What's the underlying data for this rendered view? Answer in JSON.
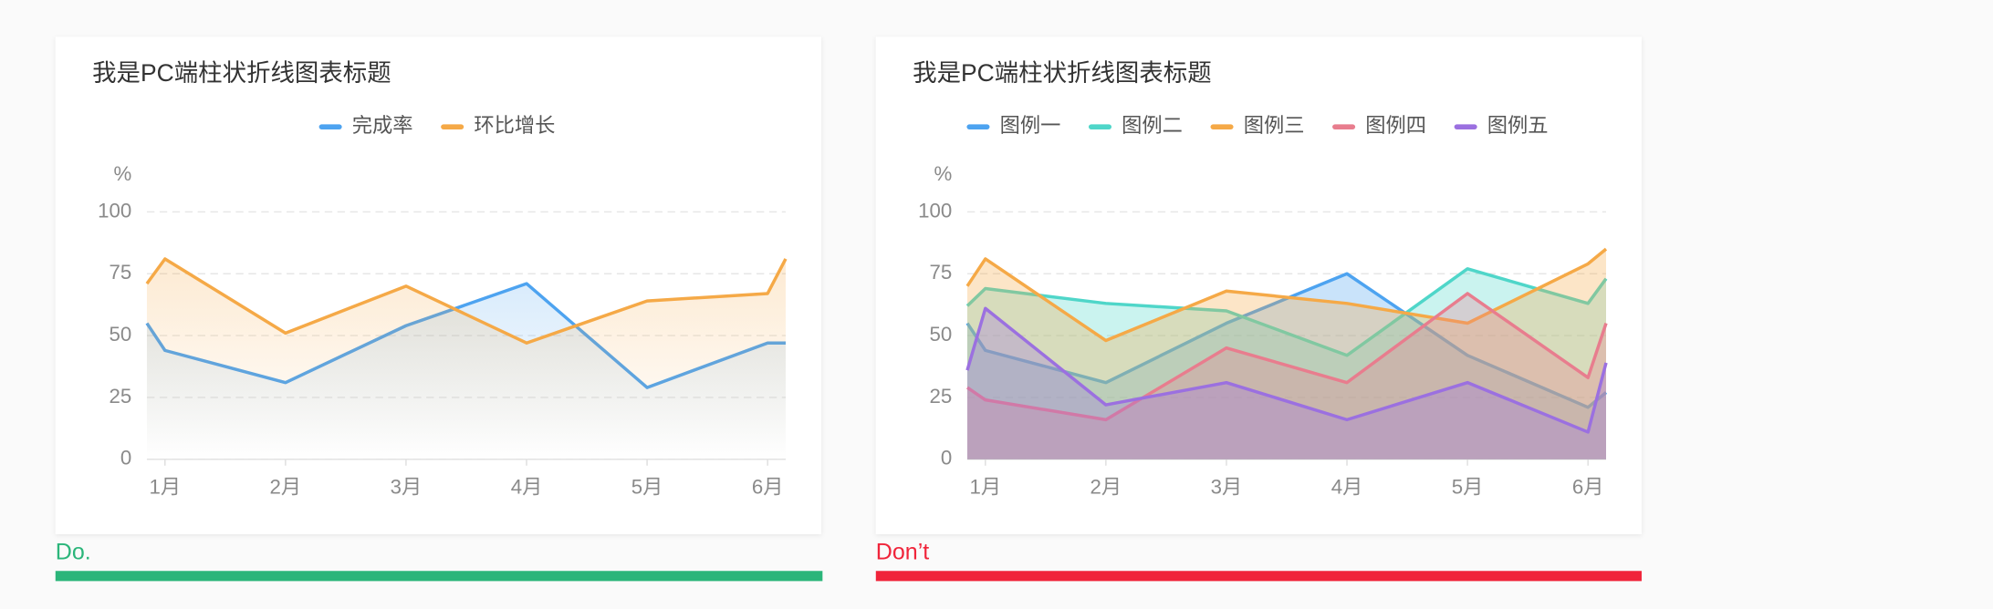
{
  "chart_data": [
    {
      "type": "area",
      "title": "我是PC端柱状折线图表标题",
      "y_unit": "%",
      "area_fill": "gradient",
      "x": [
        -0.15,
        0,
        1,
        2,
        3,
        4,
        5,
        5.15
      ],
      "xlim": [
        -0.15,
        5.15
      ],
      "xticks": [
        {
          "value": 0,
          "label": "1月"
        },
        {
          "value": 1,
          "label": "2月"
        },
        {
          "value": 2,
          "label": "3月"
        },
        {
          "value": 3,
          "label": "4月"
        },
        {
          "value": 4,
          "label": "5月"
        },
        {
          "value": 5,
          "label": "6月"
        }
      ],
      "ylim": [
        0,
        100
      ],
      "yticks": [
        0,
        25,
        50,
        75,
        100
      ],
      "grid": true,
      "series": [
        {
          "name": "完成率",
          "color": "#4da3f0",
          "values": [
            55,
            44,
            31,
            54,
            71,
            29,
            47,
            47
          ]
        },
        {
          "name": "环比增长",
          "color": "#f5a947",
          "values": [
            71,
            81,
            51,
            70,
            47,
            64,
            67,
            81
          ]
        }
      ]
    },
    {
      "type": "area",
      "title": "我是PC端柱状折线图表标题",
      "y_unit": "%",
      "area_fill": "solid",
      "x": [
        -0.15,
        0,
        1,
        2,
        3,
        4,
        5,
        5.15
      ],
      "xlim": [
        -0.15,
        5.15
      ],
      "xticks": [
        {
          "value": 0,
          "label": "1月"
        },
        {
          "value": 1,
          "label": "2月"
        },
        {
          "value": 2,
          "label": "3月"
        },
        {
          "value": 3,
          "label": "4月"
        },
        {
          "value": 4,
          "label": "5月"
        },
        {
          "value": 5,
          "label": "6月"
        }
      ],
      "ylim": [
        0,
        100
      ],
      "yticks": [
        0,
        25,
        50,
        75,
        100
      ],
      "grid": true,
      "series": [
        {
          "name": "图例一",
          "color": "#4da3f0",
          "values": [
            55,
            44,
            31,
            55,
            75,
            42,
            21,
            27
          ]
        },
        {
          "name": "图例二",
          "color": "#4fd6c9",
          "values": [
            62,
            69,
            63,
            60,
            42,
            77,
            63,
            73
          ]
        },
        {
          "name": "图例三",
          "color": "#f5a947",
          "values": [
            70,
            81,
            48,
            68,
            63,
            55,
            79,
            85
          ]
        },
        {
          "name": "图例四",
          "color": "#e87d8e",
          "values": [
            29,
            24,
            16,
            45,
            31,
            67,
            33,
            55
          ]
        },
        {
          "name": "图例五",
          "color": "#9b70e0",
          "values": [
            36,
            61,
            22,
            31,
            16,
            31,
            11,
            39
          ]
        }
      ]
    }
  ],
  "captions": [
    {
      "label": "Do.",
      "color": "#2bb57a"
    },
    {
      "label": "Don’t",
      "color": "#f0243a"
    }
  ]
}
